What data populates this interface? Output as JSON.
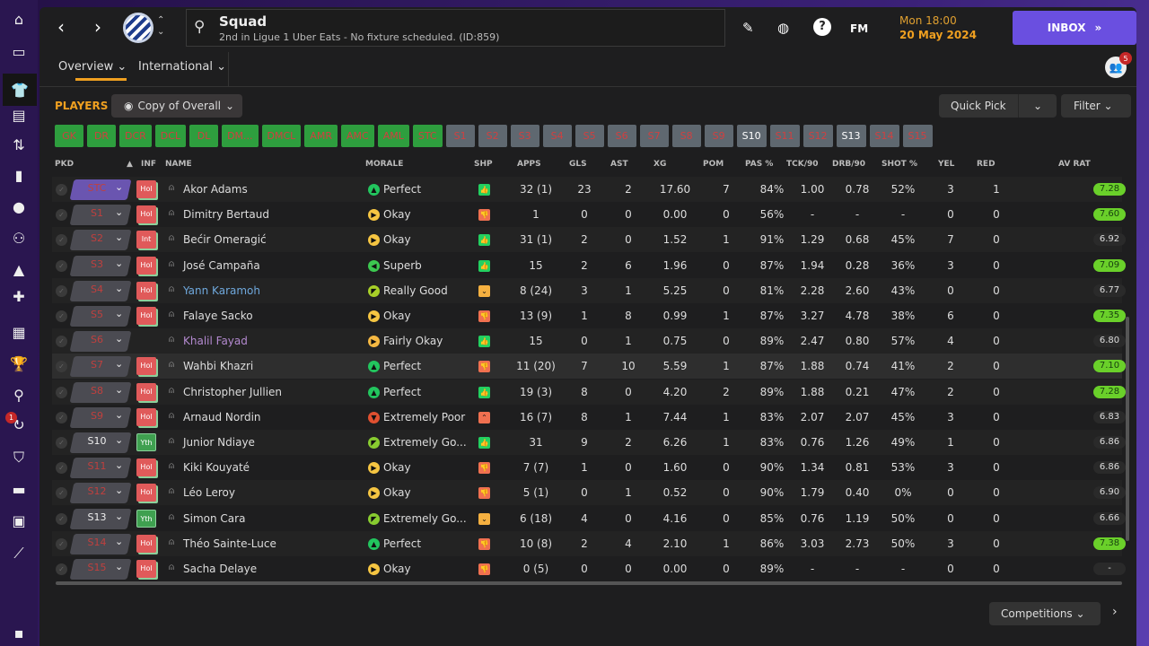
{
  "sidebar": {
    "icons": [
      "home-icon",
      "inbox-icon",
      "squad-icon",
      "tactics-icon",
      "transfers-icon",
      "report-icon",
      "data-icon",
      "staff-icon",
      "training-icon",
      "medical-icon",
      "schedule-icon",
      "competitions-icon",
      "scouting-icon",
      "transfers-icon",
      "club-icon",
      "finances-icon",
      "dev-icon",
      "trend-icon",
      "exit-icon"
    ],
    "badge": "1"
  },
  "header": {
    "title": "Squad",
    "subtitle": "2nd in Ligue 1 Uber Eats - No fixture scheduled. (ID:859)",
    "date_time": "Mon 18:00",
    "date": "20 May 2024",
    "fm_label": "FM",
    "inbox_label": "INBOX",
    "notif_count": "5"
  },
  "tabs": [
    {
      "label": "Overview ⌄"
    },
    {
      "label": "International ⌄"
    }
  ],
  "toolbar": {
    "players_label": "PLAYERS",
    "view": "Copy of Overall",
    "quick_pick": "Quick Pick",
    "filter": "Filter"
  },
  "positions": [
    {
      "label": "GK",
      "type": "g"
    },
    {
      "label": "DR",
      "type": "g"
    },
    {
      "label": "DCR",
      "type": "g"
    },
    {
      "label": "DCL",
      "type": "g"
    },
    {
      "label": "DL",
      "type": "g"
    },
    {
      "label": "DM...",
      "type": "g"
    },
    {
      "label": "DMCL",
      "type": "g"
    },
    {
      "label": "AMR",
      "type": "g"
    },
    {
      "label": "AMC",
      "type": "g"
    },
    {
      "label": "AML",
      "type": "g"
    },
    {
      "label": "STC",
      "type": "g"
    },
    {
      "label": "S1",
      "type": "s"
    },
    {
      "label": "S2",
      "type": "s"
    },
    {
      "label": "S3",
      "type": "s"
    },
    {
      "label": "S4",
      "type": "s"
    },
    {
      "label": "S5",
      "type": "s"
    },
    {
      "label": "S6",
      "type": "s"
    },
    {
      "label": "S7",
      "type": "s"
    },
    {
      "label": "S8",
      "type": "s"
    },
    {
      "label": "S9",
      "type": "s"
    },
    {
      "label": "S10",
      "type": "sw"
    },
    {
      "label": "S11",
      "type": "s"
    },
    {
      "label": "S12",
      "type": "s"
    },
    {
      "label": "S13",
      "type": "sw"
    },
    {
      "label": "S14",
      "type": "s"
    },
    {
      "label": "S15",
      "type": "s"
    }
  ],
  "columns": [
    "PKD",
    "▲",
    "INF",
    "NAME",
    "MORALE",
    "SHP",
    "APPS",
    "GLS",
    "AST",
    "XG",
    "POM",
    "PAS %",
    "TCK/90",
    "DRB/90",
    "SHOT %",
    "YEL",
    "RED",
    "AV RAT"
  ],
  "colors": {
    "accent": "#f0a020",
    "inbox": "#6a4fe0",
    "good": "#6ad02a"
  },
  "rows": [
    {
      "pos": "STC",
      "inf": "Hol",
      "name": "Akor Adams",
      "morale": "Perfect",
      "mood": "perfect",
      "shp": "up",
      "apps": "32 (1)",
      "gls": "23",
      "ast": "2",
      "xg": "17.60",
      "pom": "7",
      "pas": "84%",
      "tck": "1.00",
      "drb": "0.78",
      "shot": "52%",
      "yel": "3",
      "red": "1",
      "rat": "7.28"
    },
    {
      "pos": "S1",
      "inf": "Hol",
      "name": "Dimitry Bertaud",
      "morale": "Okay",
      "mood": "okay",
      "shp": "down",
      "apps": "1",
      "gls": "0",
      "ast": "0",
      "xg": "0.00",
      "pom": "0",
      "pas": "56%",
      "tck": "-",
      "drb": "-",
      "shot": "-",
      "yel": "0",
      "red": "0",
      "rat": "7.60"
    },
    {
      "pos": "S2",
      "inf": "Int",
      "name": "Bećir Omeragić",
      "morale": "Okay",
      "mood": "okay",
      "shp": "up",
      "apps": "31 (1)",
      "gls": "2",
      "ast": "0",
      "xg": "1.52",
      "pom": "1",
      "pas": "91%",
      "tck": "1.29",
      "drb": "0.68",
      "shot": "45%",
      "yel": "7",
      "red": "0",
      "rat": "6.92"
    },
    {
      "pos": "S3",
      "inf": "Hol",
      "name": "José Campaña",
      "morale": "Superb",
      "mood": "superb",
      "shp": "up",
      "apps": "15",
      "gls": "2",
      "ast": "6",
      "xg": "1.96",
      "pom": "0",
      "pas": "87%",
      "tck": "1.94",
      "drb": "0.28",
      "shot": "36%",
      "yel": "3",
      "red": "0",
      "rat": "7.09"
    },
    {
      "pos": "S4",
      "inf": "Hol",
      "name": "Yann Karamoh",
      "morale": "Really Good",
      "mood": "rgood",
      "shp": "mid",
      "apps": "8 (24)",
      "gls": "3",
      "ast": "1",
      "xg": "5.25",
      "pom": "0",
      "pas": "81%",
      "tck": "2.28",
      "drb": "2.60",
      "shot": "43%",
      "yel": "0",
      "red": "0",
      "rat": "6.77",
      "name_color": "#6fa8dc"
    },
    {
      "pos": "S5",
      "inf": "Hol",
      "name": "Falaye Sacko",
      "morale": "Okay",
      "mood": "okay",
      "shp": "down",
      "apps": "13 (9)",
      "gls": "1",
      "ast": "8",
      "xg": "0.99",
      "pom": "1",
      "pas": "87%",
      "tck": "3.27",
      "drb": "4.78",
      "shot": "38%",
      "yel": "6",
      "red": "0",
      "rat": "7.35"
    },
    {
      "pos": "S6",
      "inf": "",
      "name": "Khalil Fayad",
      "morale": "Fairly Okay",
      "mood": "fokay",
      "shp": "up",
      "apps": "15",
      "gls": "0",
      "ast": "1",
      "xg": "0.75",
      "pom": "0",
      "pas": "89%",
      "tck": "2.47",
      "drb": "0.80",
      "shot": "57%",
      "yel": "4",
      "red": "0",
      "rat": "6.80",
      "name_color": "#b48ad0"
    },
    {
      "pos": "S7",
      "inf": "Hol",
      "name": "Wahbi Khazri",
      "morale": "Perfect",
      "mood": "perfect",
      "shp": "down",
      "apps": "11 (20)",
      "gls": "7",
      "ast": "10",
      "xg": "5.59",
      "pom": "1",
      "pas": "87%",
      "tck": "1.88",
      "drb": "0.74",
      "shot": "41%",
      "yel": "2",
      "red": "0",
      "rat": "7.10"
    },
    {
      "pos": "S8",
      "inf": "Hol",
      "name": "Christopher Jullien",
      "morale": "Perfect",
      "mood": "perfect",
      "shp": "up",
      "apps": "19 (3)",
      "gls": "8",
      "ast": "0",
      "xg": "4.20",
      "pom": "2",
      "pas": "89%",
      "tck": "1.88",
      "drb": "0.21",
      "shot": "47%",
      "yel": "2",
      "red": "0",
      "rat": "7.28"
    },
    {
      "pos": "S9",
      "inf": "Hol",
      "name": "Arnaud Nordin",
      "morale": "Extremely Poor",
      "mood": "epoor",
      "shp": "upish",
      "apps": "16 (7)",
      "gls": "8",
      "ast": "1",
      "xg": "7.44",
      "pom": "1",
      "pas": "83%",
      "tck": "2.07",
      "drb": "2.07",
      "shot": "45%",
      "yel": "3",
      "red": "0",
      "rat": "6.83"
    },
    {
      "pos": "S10",
      "inf": "Yth",
      "name": "Junior Ndiaye",
      "morale": "Extremely Go...",
      "mood": "egood",
      "shp": "up",
      "apps": "31",
      "gls": "9",
      "ast": "2",
      "xg": "6.26",
      "pom": "1",
      "pas": "83%",
      "tck": "0.76",
      "drb": "1.26",
      "shot": "49%",
      "yel": "1",
      "red": "0",
      "rat": "6.86"
    },
    {
      "pos": "S11",
      "inf": "Hol",
      "name": "Kiki Kouyaté",
      "morale": "Okay",
      "mood": "okay",
      "shp": "down",
      "apps": "7 (7)",
      "gls": "1",
      "ast": "0",
      "xg": "1.60",
      "pom": "0",
      "pas": "90%",
      "tck": "1.34",
      "drb": "0.81",
      "shot": "53%",
      "yel": "3",
      "red": "0",
      "rat": "6.86"
    },
    {
      "pos": "S12",
      "inf": "Hol",
      "name": "Léo Leroy",
      "morale": "Okay",
      "mood": "okay",
      "shp": "down",
      "apps": "5 (1)",
      "gls": "0",
      "ast": "1",
      "xg": "0.52",
      "pom": "0",
      "pas": "90%",
      "tck": "1.79",
      "drb": "0.40",
      "shot": "0%",
      "yel": "0",
      "red": "0",
      "rat": "6.90"
    },
    {
      "pos": "S13",
      "inf": "Yth",
      "name": "Simon Cara",
      "morale": "Extremely Go...",
      "mood": "egood",
      "shp": "mid",
      "apps": "6 (18)",
      "gls": "4",
      "ast": "0",
      "xg": "4.16",
      "pom": "0",
      "pas": "85%",
      "tck": "0.76",
      "drb": "1.19",
      "shot": "50%",
      "yel": "0",
      "red": "0",
      "rat": "6.66"
    },
    {
      "pos": "S14",
      "inf": "Hol",
      "name": "Théo Sainte-Luce",
      "morale": "Perfect",
      "mood": "perfect",
      "shp": "down",
      "apps": "10 (8)",
      "gls": "2",
      "ast": "4",
      "xg": "2.10",
      "pom": "1",
      "pas": "86%",
      "tck": "3.03",
      "drb": "2.73",
      "shot": "50%",
      "yel": "3",
      "red": "0",
      "rat": "7.38"
    },
    {
      "pos": "S15",
      "inf": "Hol",
      "name": "Sacha Delaye",
      "morale": "Okay",
      "mood": "okay",
      "shp": "down",
      "apps": "0 (5)",
      "gls": "0",
      "ast": "0",
      "xg": "0.00",
      "pom": "0",
      "pas": "89%",
      "tck": "-",
      "drb": "-",
      "shot": "-",
      "yel": "0",
      "red": "0",
      "rat": "-"
    }
  ],
  "footer": {
    "competitions": "Competitions"
  }
}
